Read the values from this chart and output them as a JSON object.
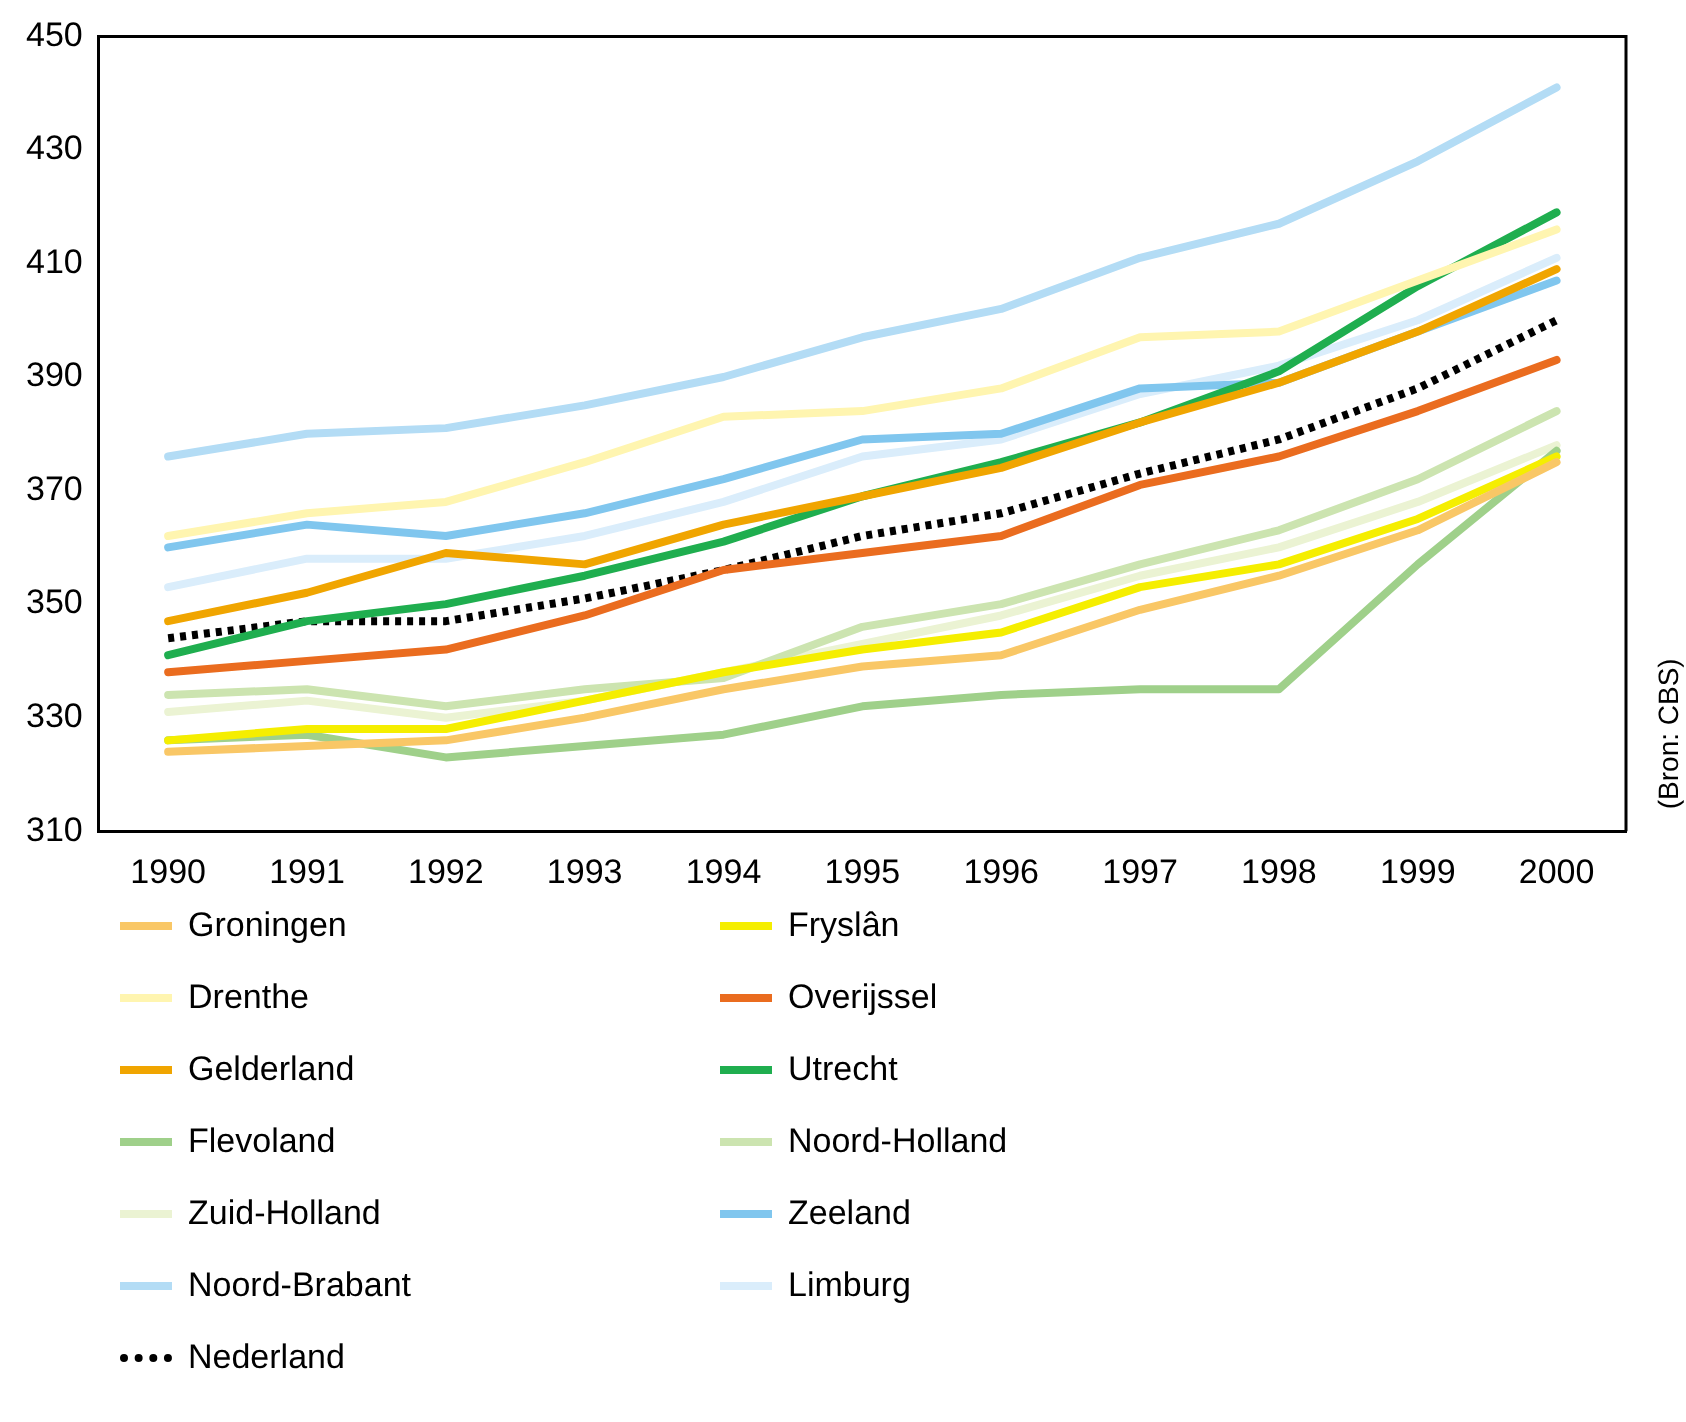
{
  "chart_data": {
    "type": "line",
    "categories": [
      "1990",
      "1991",
      "1992",
      "1993",
      "1994",
      "1995",
      "1996",
      "1997",
      "1998",
      "1999",
      "2000"
    ],
    "ylim": [
      310,
      450
    ],
    "yticks": [
      310,
      330,
      350,
      370,
      390,
      410,
      430,
      450
    ],
    "grid": false,
    "legend": "bottom",
    "marker": "none",
    "annotations": [
      "(Bron: CBS)"
    ],
    "series": [
      {
        "name": "Groningen",
        "color": "#f9c766",
        "values": [
          324,
          325,
          326,
          330,
          335,
          339,
          341,
          349,
          355,
          363,
          375
        ]
      },
      {
        "name": "Fryslân",
        "color": "#f5ee00",
        "values": [
          326,
          328,
          328,
          333,
          338,
          342,
          345,
          353,
          357,
          365,
          376
        ]
      },
      {
        "name": "Drenthe",
        "color": "#fff5b0",
        "values": [
          362,
          366,
          368,
          375,
          383,
          384,
          388,
          397,
          398,
          407,
          416
        ]
      },
      {
        "name": "Overijssel",
        "color": "#ea6c1f",
        "values": [
          338,
          340,
          342,
          348,
          356,
          359,
          362,
          371,
          376,
          384,
          393
        ]
      },
      {
        "name": "Gelderland",
        "color": "#f0a500",
        "values": [
          347,
          352,
          359,
          357,
          364,
          369,
          374,
          382,
          389,
          398,
          409
        ]
      },
      {
        "name": "Utrecht",
        "color": "#1fae4f",
        "values": [
          341,
          347,
          350,
          355,
          361,
          369,
          375,
          382,
          391,
          406,
          419
        ]
      },
      {
        "name": "Flevoland",
        "color": "#9fd08a",
        "values": [
          326,
          327,
          323,
          325,
          327,
          332,
          334,
          335,
          335,
          357,
          377
        ]
      },
      {
        "name": "Noord-Holland",
        "color": "#cce4b0",
        "values": [
          334,
          335,
          332,
          335,
          337,
          346,
          350,
          357,
          363,
          372,
          384
        ]
      },
      {
        "name": "Zuid-Holland",
        "color": "#ebf3d3",
        "values": [
          331,
          333,
          330,
          333,
          338,
          343,
          348,
          355,
          360,
          368,
          378
        ]
      },
      {
        "name": "Zeeland",
        "color": "#80c6ee",
        "values": [
          360,
          364,
          362,
          366,
          372,
          379,
          380,
          388,
          389,
          398,
          407
        ]
      },
      {
        "name": "Noord-Brabant",
        "color": "#b3dcf5",
        "values": [
          376,
          380,
          381,
          385,
          390,
          397,
          402,
          411,
          417,
          428,
          441
        ]
      },
      {
        "name": "Limburg",
        "color": "#daedfb",
        "values": [
          353,
          358,
          358,
          362,
          368,
          376,
          379,
          387,
          392,
          400,
          411
        ]
      },
      {
        "name": "Nederland",
        "color": "#000000",
        "line_style": "dotted",
        "values": [
          344,
          347,
          347,
          351,
          356,
          362,
          366,
          373,
          379,
          388,
          400
        ]
      }
    ]
  }
}
